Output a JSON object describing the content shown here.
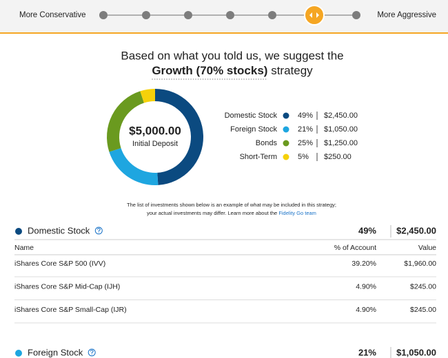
{
  "slider": {
    "left_label": "More Conservative",
    "right_label": "More Aggressive"
  },
  "headline": {
    "line1": "Based on what you told us, we suggest the",
    "strategy": "Growth (70% stocks)",
    "suffix": "strategy"
  },
  "donut": {
    "type": "donut",
    "center_value": "$5,000.00",
    "center_label": "Initial Deposit",
    "categories": [
      "Domestic Stock",
      "Foreign Stock",
      "Bonds",
      "Short-Term"
    ],
    "values": [
      49,
      21,
      25,
      5
    ],
    "value_labels": [
      "49%",
      "21%",
      "25%",
      "5%"
    ],
    "amounts": [
      "$2,450.00",
      "$1,050.00",
      "$1,250.00",
      "$250.00"
    ],
    "colors": [
      "#0b4a80",
      "#1ea6e0",
      "#6a9a1f",
      "#f5d10a"
    ]
  },
  "disclaimer": {
    "line1": "The list of investments shown below is an example of what may be included in this strategy;",
    "line2": "your actual investments may differ. Learn more about the",
    "link": "Fidelity Go team"
  },
  "sections": [
    {
      "name": "Domestic Stock",
      "percent": "49%",
      "value": "$2,450.00",
      "columns": [
        "Name",
        "% of Account",
        "Value"
      ],
      "rows": [
        [
          "iShares Core S&P 500 (IVV)",
          "39.20%",
          "$1,960.00"
        ],
        [
          "iShares Core S&P Mid-Cap (IJH)",
          "4.90%",
          "$245.00"
        ],
        [
          "iShares Core S&P Small-Cap (IJR)",
          "4.90%",
          "$245.00"
        ]
      ]
    },
    {
      "name": "Foreign Stock",
      "percent": "21%",
      "value": "$1,050.00"
    }
  ]
}
